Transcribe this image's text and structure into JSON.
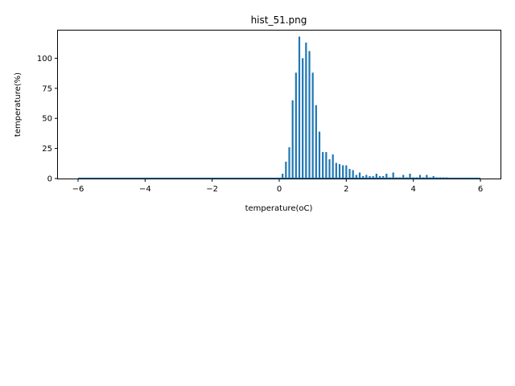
{
  "chart_data": {
    "type": "bar",
    "title": "hist_51.png",
    "xlabel": "temperature(oC)",
    "ylabel": "temperature(%)",
    "xlim": [
      -6.6,
      6.6
    ],
    "ylim": [
      0,
      123
    ],
    "xticks": [
      -6,
      -4,
      -2,
      0,
      2,
      4,
      6
    ],
    "xtick_labels": [
      "−6",
      "−4",
      "−2",
      "0",
      "2",
      "4",
      "6"
    ],
    "yticks": [
      0,
      25,
      50,
      75,
      100
    ],
    "ytick_labels": [
      "0",
      "25",
      "50",
      "75",
      "100"
    ],
    "bar_color": "#1f77b4",
    "grid": false,
    "x": [
      0.1,
      0.2,
      0.3,
      0.4,
      0.5,
      0.6,
      0.7,
      0.8,
      0.9,
      1.0,
      1.1,
      1.2,
      1.3,
      1.4,
      1.5,
      1.6,
      1.7,
      1.8,
      1.9,
      2.0,
      2.1,
      2.2,
      2.3,
      2.4,
      2.5,
      2.6,
      2.7,
      2.8,
      2.9,
      3.0,
      3.1,
      3.2,
      3.3,
      3.4,
      3.5,
      3.6,
      3.7,
      3.8,
      3.9,
      4.0,
      4.1,
      4.2,
      4.3,
      4.4,
      4.5,
      4.6,
      4.7,
      4.8,
      4.9,
      5.0
    ],
    "values": [
      4,
      14,
      26,
      65,
      88,
      118,
      100,
      113,
      106,
      88,
      61,
      39,
      22,
      22,
      16,
      20,
      13,
      12,
      11,
      11,
      8,
      7,
      3,
      5,
      2,
      3,
      2,
      2,
      4,
      2,
      2,
      4,
      1,
      5,
      1,
      1,
      3,
      1,
      4,
      1,
      1,
      3,
      1,
      3,
      1,
      2,
      1,
      1,
      1,
      1
    ],
    "baseline": {
      "x": [
        -6,
        6
      ],
      "y": 0
    }
  }
}
